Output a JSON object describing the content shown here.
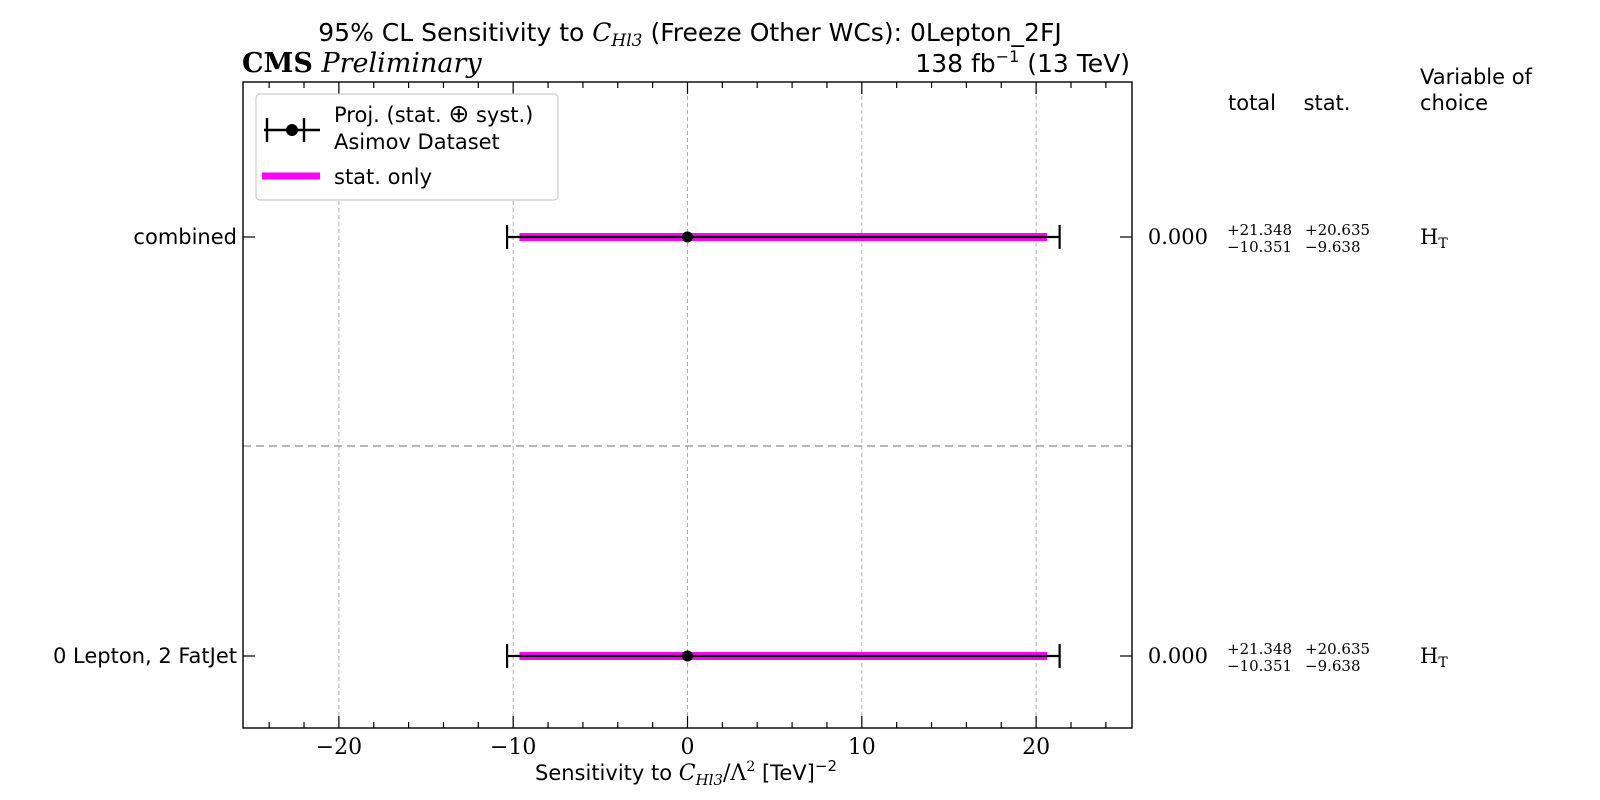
{
  "chart_data": {
    "type": "errorbar",
    "title_pre": "95% CL Sensitivity to ",
    "title_var": "C",
    "title_var_sub": "Hl3",
    "title_post": " (Freeze Other WCs): 0Lepton_2FJ",
    "cms_label": "CMS",
    "cms_sublabel": "Preliminary",
    "lumi_value": "138 fb",
    "lumi_exp": "−1",
    "lumi_energy": "(13 TeV)",
    "xlabel_pre": "Sensitivity to ",
    "xlabel_var": "C",
    "xlabel_var_sub": "Hl3",
    "xlabel_mid": "/Λ",
    "xlabel_sq": "2",
    "xlabel_unit": "[TeV]",
    "xlabel_unit_exp": "−2",
    "xlim": [
      -25.5,
      25.5
    ],
    "x_ticks": [
      -20,
      -10,
      0,
      10,
      20
    ],
    "x_tick_labels": [
      "−20",
      "−10",
      "0",
      "10",
      "20"
    ],
    "grid": true,
    "legend_position": "top-left",
    "legend": {
      "proj_line1": "Proj. (stat. ",
      "proj_oplus": "⊕",
      "proj_line1_end": " syst.)",
      "proj_line2": "Asimov Dataset",
      "stat": "stat. only"
    },
    "header": {
      "total": "total",
      "stat": "stat.",
      "variable_line1": "Variable of",
      "variable_line2": "choice"
    },
    "colors": {
      "stat_band": "#ff00ff",
      "total": "#000000",
      "grid": "#b0b0b0",
      "separator": "#a0a0a0"
    },
    "rows": [
      {
        "label": "combined",
        "central": 0.0,
        "total_lo": -10.351,
        "total_hi": 21.348,
        "stat_lo": -9.638,
        "stat_hi": 20.635,
        "central_text": "0.000",
        "total_up": "+21.348",
        "total_down": "−10.351",
        "stat_up": "+20.635",
        "stat_down": "−9.638",
        "variable": "H",
        "variable_sub": "T"
      },
      {
        "label": "0 Lepton, 2 FatJet",
        "central": 0.0,
        "total_lo": -10.351,
        "total_hi": 21.348,
        "stat_lo": -9.638,
        "stat_hi": 20.635,
        "central_text": "0.000",
        "total_up": "+21.348",
        "total_down": "−10.351",
        "stat_up": "+20.635",
        "stat_down": "−9.638",
        "variable": "H",
        "variable_sub": "T"
      }
    ]
  }
}
